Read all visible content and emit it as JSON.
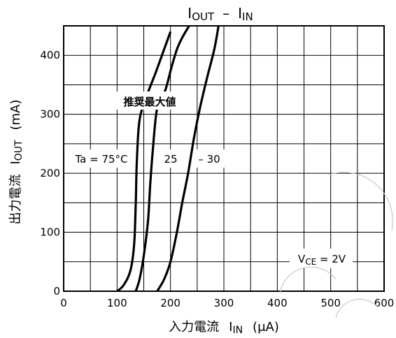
{
  "chart_data": {
    "type": "line",
    "title": {
      "main": "I",
      "main_sub": "OUT",
      "separator": "–",
      "second": "I",
      "second_sub": "IN"
    },
    "xlabel": {
      "prefix": "入力電流",
      "symbol": "I",
      "symbol_sub": "IN",
      "unit": "(μA)"
    },
    "ylabel": {
      "prefix": "出力電流",
      "symbol": "I",
      "symbol_sub": "OUT",
      "unit": "(mA)"
    },
    "xlim": [
      0,
      600
    ],
    "ylim": [
      0,
      450
    ],
    "x_ticks": [
      0,
      100,
      200,
      300,
      400,
      500,
      600
    ],
    "y_ticks": [
      0,
      100,
      200,
      300,
      400
    ],
    "grid": true,
    "annotations": {
      "recommended": "推奨最大値",
      "ta_label": "Ta = 75°C",
      "label_25": "25",
      "label_m30": "– 30",
      "condition_prefix": "V",
      "condition_sub": "CE",
      "condition_value": " = 2V"
    },
    "series": [
      {
        "points": [
          [
            100,
            0
          ],
          [
            112,
            10
          ],
          [
            125,
            35
          ],
          [
            132,
            80
          ],
          [
            135,
            150
          ],
          [
            137,
            220
          ],
          [
            142,
            290
          ],
          [
            155,
            330
          ],
          [
            172,
            370
          ],
          [
            188,
            410
          ],
          [
            200,
            440
          ]
        ]
      },
      {
        "points": [
          [
            135,
            0
          ],
          [
            142,
            20
          ],
          [
            150,
            60
          ],
          [
            158,
            120
          ],
          [
            162,
            180
          ],
          [
            167,
            240
          ],
          [
            175,
            310
          ],
          [
            190,
            340
          ],
          [
            202,
            380
          ],
          [
            212,
            410
          ],
          [
            222,
            430
          ],
          [
            235,
            450
          ]
        ]
      },
      {
        "points": [
          [
            175,
            0
          ],
          [
            188,
            20
          ],
          [
            200,
            50
          ],
          [
            212,
            100
          ],
          [
            222,
            150
          ],
          [
            233,
            200
          ],
          [
            244,
            260
          ],
          [
            255,
            310
          ],
          [
            268,
            360
          ],
          [
            282,
            410
          ],
          [
            290,
            450
          ]
        ]
      }
    ]
  }
}
